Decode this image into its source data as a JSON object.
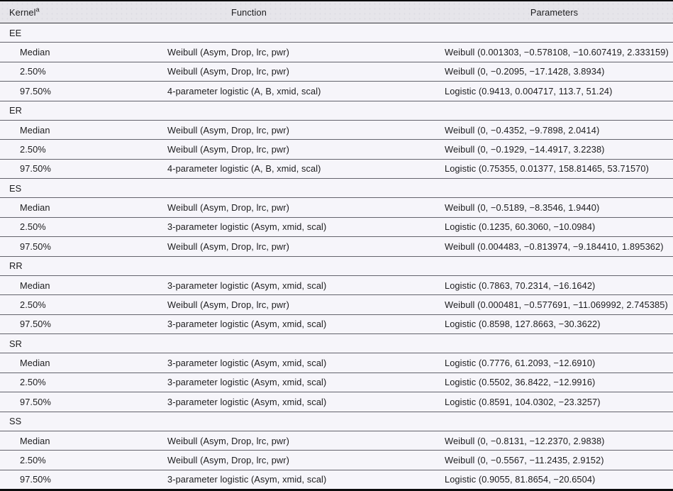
{
  "header": {
    "kernel_label": "Kernel",
    "kernel_note": "a",
    "function_label": "Function",
    "parameters_label": "Parameters"
  },
  "colors": {
    "header_bg": "#e6e5ea",
    "body_bg": "#f6f5fa",
    "frame_border": "#0b0b0d",
    "row_line": "#63636c",
    "text": "#1c1c1e"
  },
  "groups": [
    {
      "name": "EE",
      "rows": [
        {
          "label": "Median",
          "function": "Weibull (Asym, Drop, lrc, pwr)",
          "parameters": "Weibull (0.001303, −0.578108, −10.607419, 2.333159)"
        },
        {
          "label": "2.50%",
          "function": "Weibull (Asym, Drop, lrc, pwr)",
          "parameters": "Weibull (0, −0.2095, −17.1428, 3.8934)"
        },
        {
          "label": "97.50%",
          "function": "4-parameter logistic (A, B, xmid, scal)",
          "parameters": "Logistic (0.9413, 0.004717, 113.7, 51.24)"
        }
      ]
    },
    {
      "name": "ER",
      "rows": [
        {
          "label": "Median",
          "function": "Weibull (Asym, Drop, lrc, pwr)",
          "parameters": "Weibull (0, −0.4352, −9.7898, 2.0414)"
        },
        {
          "label": "2.50%",
          "function": "Weibull (Asym, Drop, lrc, pwr)",
          "parameters": "Weibull (0, −0.1929, −14.4917, 3.2238)"
        },
        {
          "label": "97.50%",
          "function": "4-parameter logistic (A, B, xmid, scal)",
          "parameters": "Logistic (0.75355, 0.01377, 158.81465, 53.71570)"
        }
      ]
    },
    {
      "name": "ES",
      "rows": [
        {
          "label": "Median",
          "function": "Weibull (Asym, Drop, lrc, pwr)",
          "parameters": "Weibull (0, −0.5189, −8.3546, 1.9440)"
        },
        {
          "label": "2.50%",
          "function": "3-parameter logistic (Asym, xmid, scal)",
          "parameters": "Logistic (0.1235, 60.3060, −10.0984)"
        },
        {
          "label": "97.50%",
          "function": "Weibull (Asym, Drop, lrc, pwr)",
          "parameters": "Weibull (0.004483, −0.813974, −9.184410, 1.895362)"
        }
      ]
    },
    {
      "name": "RR",
      "rows": [
        {
          "label": "Median",
          "function": "3-parameter logistic (Asym, xmid, scal)",
          "parameters": "Logistic (0.7863, 70.2314, −16.1642)"
        },
        {
          "label": "2.50%",
          "function": "Weibull (Asym, Drop, lrc, pwr)",
          "parameters": "Weibull (0.000481, −0.577691, −11.069992, 2.745385)"
        },
        {
          "label": "97.50%",
          "function": "3-parameter logistic (Asym, xmid, scal)",
          "parameters": "Logistic (0.8598, 127.8663, −30.3622)"
        }
      ]
    },
    {
      "name": "SR",
      "rows": [
        {
          "label": "Median",
          "function": "3-parameter logistic (Asym, xmid, scal)",
          "parameters": "Logistic (0.7776, 61.2093, −12.6910)"
        },
        {
          "label": "2.50%",
          "function": "3-parameter logistic (Asym, xmid, scal)",
          "parameters": "Logistic (0.5502, 36.8422, −12.9916)"
        },
        {
          "label": "97.50%",
          "function": "3-parameter logistic (Asym, xmid, scal)",
          "parameters": "Logistic (0.8591, 104.0302, −23.3257)"
        }
      ]
    },
    {
      "name": "SS",
      "rows": [
        {
          "label": "Median",
          "function": "Weibull (Asym, Drop, lrc, pwr)",
          "parameters": "Weibull (0, −0.8131, −12.2370, 2.9838)"
        },
        {
          "label": "2.50%",
          "function": "Weibull (Asym, Drop, lrc, pwr)",
          "parameters": "Weibull (0, −0.5567, −11.2435, 2.9152)"
        },
        {
          "label": "97.50%",
          "function": "3-parameter logistic (Asym, xmid, scal)",
          "parameters": "Logistic (0.9055, 81.8654, −20.6504)"
        }
      ]
    }
  ]
}
